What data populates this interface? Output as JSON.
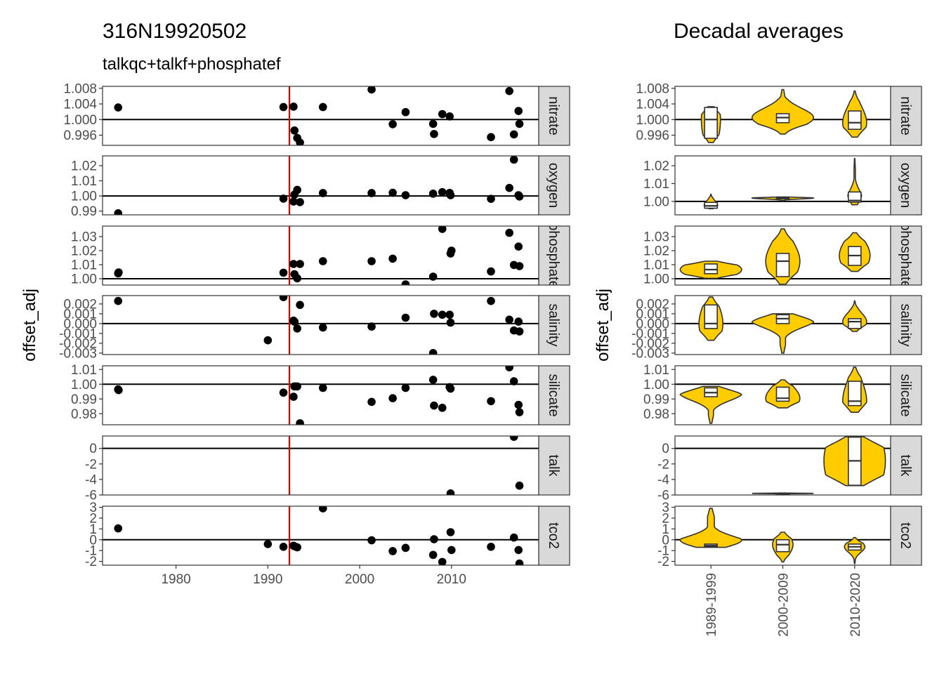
{
  "title_left": "316N19920502",
  "subtitle_left": "talkqc+talkf+phosphatef",
  "title_right": "Decadal averages",
  "ylabel": "offset_adj",
  "colors": {
    "points": "#000000",
    "cruise_line": "#dd0000",
    "violin_fill": "#ffcc00",
    "violin_stroke": "#333333",
    "strip_bg": "#d9d9d9",
    "reference_line": "#000000"
  },
  "chart_data": [
    {
      "type": "scatter",
      "title": "316N19920502",
      "subtitle": "talkqc+talkf+phosphatef",
      "xlabel": "",
      "ylabel": "offset_adj",
      "xlim": [
        1972,
        2019.5
      ],
      "x_ticks": [
        1980,
        1990,
        2000,
        2010
      ],
      "x_tick_labels": [
        "1980",
        "1990",
        "2000",
        "2010"
      ],
      "vline_x": 1992.35,
      "panels": [
        {
          "name": "nitrate",
          "strip_label": "nitrate",
          "ylim": [
            0.9934,
            1.0085
          ],
          "ref": 1.0,
          "y_ticks": [
            0.996,
            1.0,
            1.004,
            1.008
          ],
          "y_tick_labels": [
            "0.996",
            "1.000",
            "1.004",
            "1.008"
          ],
          "x": [
            1973.7,
            1991.7,
            1992.8,
            1992.9,
            1993.2,
            1993.5,
            1996.0,
            2001.3,
            2003.6,
            2005.0,
            2008.0,
            2008.1,
            2009.0,
            2009.8,
            2014.3,
            2016.3,
            2016.8,
            2017.3,
            2017.4
          ],
          "y": [
            1.0031,
            1.0032,
            1.0033,
            0.9972,
            0.9953,
            0.9941,
            1.0032,
            1.0077,
            0.9988,
            1.0019,
            0.9989,
            0.9963,
            1.0014,
            1.0008,
            0.9955,
            1.0073,
            0.9962,
            1.0022,
            0.9989
          ]
        },
        {
          "name": "oxygen",
          "strip_label": "oxygen",
          "ylim": [
            0.9875,
            1.0265
          ],
          "ref": 1.0,
          "y_ticks": [
            0.99,
            1.0,
            1.01,
            1.02
          ],
          "y_tick_labels": [
            "0.99",
            "1.00",
            "1.01",
            "1.02"
          ],
          "x": [
            1973.7,
            1991.7,
            1992.8,
            1992.9,
            1993.2,
            1993.5,
            1996.0,
            2001.3,
            2003.6,
            2005.0,
            2008.0,
            2009.0,
            2009.8,
            2009.9,
            2014.3,
            2016.3,
            2016.8,
            2017.3,
            2017.4
          ],
          "y": [
            0.9885,
            0.9982,
            0.9963,
            1.0009,
            1.004,
            0.9959,
            1.0019,
            1.0019,
            1.0021,
            1.0005,
            1.0015,
            1.0025,
            1.002,
            1.0005,
            0.9981,
            1.0053,
            1.024,
            1.0005,
            0.9996
          ]
        },
        {
          "name": "phosphate",
          "strip_label": "phosphate",
          "ylim": [
            0.9955,
            1.0375
          ],
          "ref": 1.0,
          "y_ticks": [
            1.0,
            1.01,
            1.02,
            1.03
          ],
          "y_tick_labels": [
            "1.00",
            "1.01",
            "1.02",
            "1.03"
          ],
          "x": [
            1973.7,
            1973.75,
            1991.7,
            1992.8,
            1992.9,
            1993.2,
            1993.5,
            1996.0,
            2001.3,
            2003.6,
            2005.0,
            2008.0,
            2009.0,
            2009.9,
            2010.0,
            2014.3,
            2016.3,
            2016.8,
            2017.3,
            2017.4
          ],
          "y": [
            1.0038,
            1.0045,
            1.0043,
            1.0105,
            1.0032,
            1.0003,
            1.0105,
            1.0125,
            1.0125,
            1.0143,
            0.996,
            1.0015,
            1.0355,
            1.018,
            1.02,
            1.0052,
            1.0327,
            1.0098,
            1.0229,
            1.009
          ]
        },
        {
          "name": "salinity",
          "strip_label": "salinity",
          "ylim": [
            -0.00315,
            0.00285
          ],
          "ref": 0.0,
          "y_ticks": [
            -0.003,
            -0.002,
            -0.001,
            0.0,
            0.001,
            0.002
          ],
          "y_tick_labels": [
            "-0.003",
            "-0.002",
            "-0.001",
            "0.000",
            "0.001",
            "0.002"
          ],
          "x": [
            1973.7,
            1990.0,
            1991.7,
            1992.8,
            1992.9,
            1993.2,
            1993.5,
            1996.0,
            2001.3,
            2005.0,
            2008.0,
            2008.1,
            2009.0,
            2009.8,
            2009.9,
            2014.3,
            2016.3,
            2016.8,
            2017.3,
            2017.4
          ],
          "y": [
            0.0023,
            -0.0017,
            0.0027,
            0.0003,
            0.0002,
            -0.0005,
            0.0019,
            -0.0004,
            -0.0003,
            0.0006,
            -0.003,
            0.001,
            0.0009,
            0.0009,
            0.0001,
            0.0023,
            0.0004,
            -0.0007,
            0.0002,
            -0.0008
          ]
        },
        {
          "name": "silicate",
          "strip_label": "silicate",
          "ylim": [
            0.9725,
            1.0125
          ],
          "ref": 1.0,
          "y_ticks": [
            0.98,
            0.99,
            1.0,
            1.01
          ],
          "y_tick_labels": [
            "0.98",
            "0.99",
            "1.00",
            "1.01"
          ],
          "x": [
            1973.7,
            1973.75,
            1991.7,
            1992.8,
            1992.9,
            1993.2,
            1993.5,
            1996.0,
            2001.3,
            2003.6,
            2005.0,
            2008.0,
            2008.1,
            2009.0,
            2009.8,
            2009.9,
            2014.3,
            2016.3,
            2016.8,
            2017.3,
            2017.4
          ],
          "y": [
            0.9965,
            0.996,
            0.9943,
            0.9915,
            0.9985,
            0.9985,
            0.9735,
            0.9975,
            0.988,
            0.9905,
            0.9975,
            1.003,
            0.9855,
            0.984,
            0.998,
            0.997,
            0.9885,
            1.0115,
            1.002,
            0.986,
            0.981
          ]
        },
        {
          "name": "talk",
          "strip_label": "talk",
          "ylim": [
            -6.0,
            1.6
          ],
          "ref": 0.0,
          "y_ticks": [
            -6,
            -4,
            -2,
            0
          ],
          "y_tick_labels": [
            "-6",
            "-4",
            "-2",
            "0"
          ],
          "x": [
            2009.9,
            2016.8,
            2017.4
          ],
          "y": [
            -5.8,
            1.5,
            -4.8
          ]
        },
        {
          "name": "tco2",
          "strip_label": "tco2",
          "ylim": [
            -2.35,
            3.1
          ],
          "ref": 0.0,
          "y_ticks": [
            -2,
            -1,
            0,
            1,
            2,
            3
          ],
          "y_tick_labels": [
            "-2",
            "-1",
            "0",
            "1",
            "2",
            "3"
          ],
          "x": [
            1973.7,
            1990.0,
            1991.7,
            1992.8,
            1992.9,
            1993.2,
            1996.0,
            2001.3,
            2003.6,
            2005.0,
            2008.0,
            2008.1,
            2009.0,
            2009.9,
            2010.0,
            2014.3,
            2016.8,
            2017.3,
            2017.4
          ],
          "y": [
            1.05,
            -0.4,
            -0.65,
            -0.55,
            -0.6,
            -0.7,
            2.9,
            -0.05,
            -1.05,
            -0.75,
            -1.4,
            0.05,
            -2.05,
            0.7,
            -0.95,
            -0.65,
            0.2,
            -0.95,
            -2.2
          ]
        }
      ]
    },
    {
      "type": "violin",
      "title": "Decadal averages",
      "ylabel": "offset_adj",
      "categories": [
        "1989-1999",
        "2000-2009",
        "2010-2020"
      ],
      "panels": [
        {
          "name": "nitrate",
          "strip_label": "nitrate",
          "ylim": [
            0.9934,
            1.0085
          ],
          "ref": 1.0,
          "y_ticks": [
            0.996,
            1.0,
            1.004,
            1.008
          ],
          "y_tick_labels": [
            "0.996",
            "1.000",
            "1.004",
            "1.008"
          ],
          "groups": [
            {
              "min": 0.9941,
              "q1": 0.9952,
              "median": 1.0,
              "q3": 1.0031,
              "max": 1.0033,
              "width": 0.28
            },
            {
              "min": 0.9963,
              "q1": 0.9992,
              "median": 1.0005,
              "q3": 1.0015,
              "max": 1.0077,
              "width": 0.9
            },
            {
              "min": 0.9955,
              "q1": 0.9975,
              "median": 0.9992,
              "q3": 1.0022,
              "max": 1.0073,
              "width": 0.35
            }
          ]
        },
        {
          "name": "oxygen",
          "strip_label": "oxygen",
          "ylim": [
            0.9925,
            1.0255
          ],
          "ref": 1.0,
          "y_ticks": [
            1.0,
            1.01,
            1.02
          ],
          "y_tick_labels": [
            "1.00",
            "1.01",
            "1.02"
          ],
          "groups": [
            {
              "min": 0.9959,
              "q1": 0.9962,
              "median": 0.9975,
              "q3": 0.9995,
              "max": 1.004,
              "width": 0.2
            },
            {
              "min": 1.0005,
              "q1": 1.0015,
              "median": 1.0019,
              "q3": 1.0021,
              "max": 1.0025,
              "width": 0.9
            },
            {
              "min": 0.9981,
              "q1": 0.9996,
              "median": 1.0005,
              "q3": 1.0053,
              "max": 1.024,
              "width": 0.2
            }
          ]
        },
        {
          "name": "phosphate",
          "strip_label": "phosphate",
          "ylim": [
            0.9955,
            1.0375
          ],
          "ref": 1.0,
          "y_ticks": [
            1.0,
            1.01,
            1.02,
            1.03
          ],
          "y_tick_labels": [
            "1.00",
            "1.01",
            "1.02",
            "1.03"
          ],
          "groups": [
            {
              "min": 1.0003,
              "q1": 1.0036,
              "median": 1.0065,
              "q3": 1.0105,
              "max": 1.0125,
              "width": 0.9
            },
            {
              "min": 0.996,
              "q1": 1.0015,
              "median": 1.0125,
              "q3": 1.018,
              "max": 1.0355,
              "width": 0.5
            },
            {
              "min": 1.0052,
              "q1": 1.0095,
              "median": 1.0165,
              "q3": 1.0229,
              "max": 1.0327,
              "width": 0.45
            }
          ]
        },
        {
          "name": "salinity",
          "strip_label": "salinity",
          "ylim": [
            -0.00315,
            0.00285
          ],
          "ref": 0.0,
          "y_ticks": [
            -0.003,
            -0.002,
            -0.001,
            0.0,
            0.001,
            0.002
          ],
          "y_tick_labels": [
            "-0.003",
            "-0.002",
            "-0.001",
            "0.000",
            "0.001",
            "0.002"
          ],
          "groups": [
            {
              "min": -0.0017,
              "q1": -0.0005,
              "median": 0.0,
              "q3": 0.0019,
              "max": 0.0027,
              "width": 0.35
            },
            {
              "min": -0.003,
              "q1": 0.0,
              "median": 0.0005,
              "q3": 0.0009,
              "max": 0.001,
              "width": 0.9
            },
            {
              "min": -0.0008,
              "q1": -0.0005,
              "median": 0.0002,
              "q3": 0.0005,
              "max": 0.0023,
              "width": 0.35
            }
          ]
        },
        {
          "name": "silicate",
          "strip_label": "silicate",
          "ylim": [
            0.9725,
            1.0125
          ],
          "ref": 1.0,
          "y_ticks": [
            0.98,
            0.99,
            1.0,
            1.01
          ],
          "y_tick_labels": [
            "0.98",
            "0.99",
            "1.00",
            "1.01"
          ],
          "groups": [
            {
              "min": 0.9735,
              "q1": 0.9915,
              "median": 0.9943,
              "q3": 0.9975,
              "max": 0.9985,
              "width": 0.9
            },
            {
              "min": 0.984,
              "q1": 0.9885,
              "median": 0.9905,
              "q3": 0.998,
              "max": 1.003,
              "width": 0.5
            },
            {
              "min": 0.981,
              "q1": 0.9855,
              "median": 0.9885,
              "q3": 1.002,
              "max": 1.0115,
              "width": 0.35
            }
          ]
        },
        {
          "name": "talk",
          "strip_label": "talk",
          "ylim": [
            -6.0,
            1.6
          ],
          "ref": 0.0,
          "y_ticks": [
            -6,
            -4,
            -2,
            0
          ],
          "y_tick_labels": [
            "-6",
            "-4",
            "-2",
            "0"
          ],
          "groups": [
            null,
            {
              "min": -5.85,
              "q1": -5.82,
              "median": -5.8,
              "q3": -5.78,
              "max": -5.75,
              "width": 0.9
            },
            {
              "min": -4.8,
              "q1": -4.75,
              "median": -1.6,
              "q3": 1.45,
              "max": 1.5,
              "width": 0.9
            }
          ]
        },
        {
          "name": "tco2",
          "strip_label": "tco2",
          "ylim": [
            -2.35,
            3.1
          ],
          "ref": 0.0,
          "y_ticks": [
            -2,
            -1,
            0,
            1,
            2,
            3
          ],
          "y_tick_labels": [
            "-2",
            "-1",
            "0",
            "1",
            "2",
            "3"
          ],
          "groups": [
            {
              "min": -0.7,
              "q1": -0.62,
              "median": -0.55,
              "q3": -0.4,
              "max": 2.9,
              "width": 0.9
            },
            {
              "min": -2.05,
              "q1": -1.1,
              "median": -0.45,
              "q3": 0.0,
              "max": 0.7,
              "width": 0.3
            },
            {
              "min": -2.2,
              "q1": -0.95,
              "median": -0.65,
              "q3": -0.4,
              "max": 0.2,
              "width": 0.3
            }
          ]
        }
      ]
    }
  ]
}
